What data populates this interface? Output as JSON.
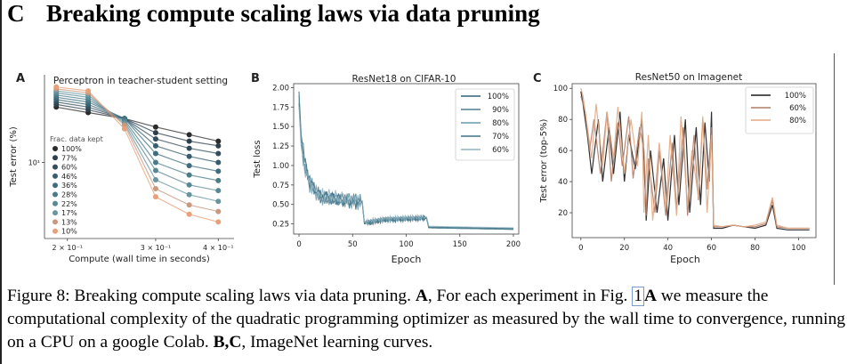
{
  "header": {
    "letter": "C",
    "title": "Breaking compute scaling laws via data pruning"
  },
  "figure": {
    "panel_a": {
      "label": "A",
      "title": "Perceptron in teacher-student setting",
      "xlabel": "Compute (wall time in seconds)",
      "ylabel": "Test error (%)",
      "xticks": [
        "2 × 10⁻¹",
        "3 × 10⁻¹",
        "4 × 10⁻¹"
      ],
      "yticks": [
        "10¹"
      ],
      "legend_title": "Frac. data kept",
      "legend": [
        "100%",
        "77%",
        "60%",
        "46%",
        "36%",
        "28%",
        "22%",
        "17%",
        "13%",
        "10%"
      ]
    },
    "panel_b": {
      "label": "B",
      "title": "ResNet18 on CIFAR-10",
      "xlabel": "Epoch",
      "ylabel": "Test loss",
      "xticks": [
        "0",
        "50",
        "100",
        "150",
        "200"
      ],
      "yticks": [
        "0.25",
        "0.50",
        "0.75",
        "1.00",
        "1.25",
        "1.50",
        "1.75",
        "2.00"
      ],
      "legend": [
        "100%",
        "90%",
        "80%",
        "70%",
        "60%"
      ]
    },
    "panel_c": {
      "label": "C",
      "title": "ResNet50 on Imagenet",
      "xlabel": "Epoch",
      "ylabel": "Test error (top-5%)",
      "xticks": [
        "0",
        "20",
        "40",
        "60",
        "80",
        "100"
      ],
      "yticks": [
        "20",
        "40",
        "60",
        "80",
        "100"
      ],
      "legend": [
        "100%",
        "60%",
        "80%"
      ]
    }
  },
  "colors": {
    "a_series": [
      "#2b2b2b",
      "#2e3f4c",
      "#324e5e",
      "#375e6e",
      "#3e6d7d",
      "#4a7b89",
      "#588995",
      "#6796a0",
      "#c9987e",
      "#e8a07a"
    ],
    "b_series": [
      "#2f5f78",
      "#4e7f94",
      "#6a9aa9",
      "#3f7286",
      "#8fb3bf"
    ],
    "c_series": [
      "#1a1a1a",
      "#b07b67",
      "#e2a882"
    ]
  },
  "caption": {
    "part1_label": "Figure 8:",
    "part1_text": " Breaking compute scaling laws via data pruning. ",
    "a_label": "A",
    "a_text": ", For each experiment in Fig. ",
    "ref_num": "1",
    "ref_letter": "A",
    "a_text2": " we measure the computational complexity of the quadratic programming optimizer as measured by the wall time to convergence, running on a CPU on a google Colab. ",
    "bc_label": "B,C",
    "bc_text": ", ImageNet learning curves."
  },
  "chart_data": [
    {
      "type": "scatter",
      "title": "Perceptron in teacher-student setting",
      "xlabel": "Compute (wall time in seconds)",
      "ylabel": "Test error (%)",
      "xscale": "log",
      "yscale": "log",
      "xlim": [
        0.18,
        0.43
      ],
      "ylim": [
        3,
        40
      ],
      "legend_placement": "left",
      "series": [
        {
          "name": "100%",
          "x": [
            0.19,
            0.22,
            0.26,
            0.3,
            0.35,
            0.4
          ],
          "y": [
            24,
            22,
            20,
            17.5,
            15.5,
            14
          ]
        },
        {
          "name": "77%",
          "x": [
            0.19,
            0.22,
            0.26,
            0.3,
            0.35,
            0.4
          ],
          "y": [
            25,
            23,
            20,
            16,
            14,
            13
          ]
        },
        {
          "name": "60%",
          "x": [
            0.19,
            0.22,
            0.26,
            0.3,
            0.35,
            0.4
          ],
          "y": [
            26,
            24,
            20,
            14.5,
            12.5,
            11.5
          ]
        },
        {
          "name": "46%",
          "x": [
            0.19,
            0.22,
            0.26,
            0.3,
            0.35,
            0.4
          ],
          "y": [
            27,
            25,
            20,
            13,
            11,
            10
          ]
        },
        {
          "name": "36%",
          "x": [
            0.19,
            0.22,
            0.26,
            0.3,
            0.35,
            0.4
          ],
          "y": [
            28,
            26,
            20,
            11.5,
            9.5,
            8.7
          ]
        },
        {
          "name": "28%",
          "x": [
            0.19,
            0.22,
            0.26,
            0.3,
            0.35,
            0.4
          ],
          "y": [
            29,
            27,
            19.5,
            10,
            8.2,
            7.5
          ]
        },
        {
          "name": "22%",
          "x": [
            0.19,
            0.22,
            0.26,
            0.3,
            0.35,
            0.4
          ],
          "y": [
            30,
            28,
            19,
            8.8,
            7,
            6.4
          ]
        },
        {
          "name": "17%",
          "x": [
            0.19,
            0.22,
            0.26,
            0.3,
            0.35,
            0.4
          ],
          "y": [
            31,
            29,
            18.5,
            7.6,
            6,
            5.4
          ]
        },
        {
          "name": "13%",
          "x": [
            0.19,
            0.22,
            0.26,
            0.3,
            0.35,
            0.4
          ],
          "y": [
            32,
            30,
            18,
            6.6,
            5.1,
            4.6
          ]
        },
        {
          "name": "10%",
          "x": [
            0.19,
            0.22,
            0.26,
            0.3,
            0.35,
            0.4
          ],
          "y": [
            33,
            31,
            17,
            5.8,
            4.4,
            3.9
          ]
        }
      ]
    },
    {
      "type": "line",
      "title": "ResNet18 on CIFAR-10",
      "xlabel": "Epoch",
      "ylabel": "Test loss",
      "xlim": [
        -5,
        205
      ],
      "ylim": [
        0.12,
        2.05
      ],
      "legend_placement": "top-right",
      "series": [
        {
          "name": "100%",
          "x": [
            0,
            2,
            5,
            10,
            20,
            40,
            59,
            61,
            80,
            119,
            121,
            200
          ],
          "y": [
            1.95,
            1.4,
            1.1,
            0.8,
            0.6,
            0.55,
            0.52,
            0.25,
            0.3,
            0.32,
            0.2,
            0.18
          ]
        },
        {
          "name": "90%",
          "x": [
            0,
            2,
            5,
            10,
            20,
            40,
            59,
            61,
            80,
            119,
            121,
            200
          ],
          "y": [
            1.9,
            1.35,
            1.05,
            0.78,
            0.6,
            0.56,
            0.53,
            0.26,
            0.3,
            0.32,
            0.2,
            0.18
          ]
        },
        {
          "name": "80%",
          "x": [
            0,
            2,
            5,
            10,
            20,
            40,
            59,
            61,
            80,
            119,
            121,
            200
          ],
          "y": [
            1.85,
            1.3,
            1.0,
            0.75,
            0.58,
            0.55,
            0.52,
            0.26,
            0.31,
            0.33,
            0.21,
            0.19
          ]
        },
        {
          "name": "70%",
          "x": [
            0,
            2,
            5,
            10,
            20,
            40,
            59,
            61,
            80,
            119,
            121,
            200
          ],
          "y": [
            1.8,
            1.3,
            1.0,
            0.75,
            0.6,
            0.57,
            0.54,
            0.27,
            0.31,
            0.33,
            0.21,
            0.19
          ]
        },
        {
          "name": "60%",
          "x": [
            0,
            2,
            5,
            10,
            20,
            40,
            59,
            61,
            80,
            119,
            121,
            200
          ],
          "y": [
            1.75,
            1.25,
            0.98,
            0.75,
            0.62,
            0.58,
            0.55,
            0.28,
            0.32,
            0.34,
            0.22,
            0.2
          ]
        }
      ]
    },
    {
      "type": "line",
      "title": "ResNet50 on Imagenet",
      "xlabel": "Epoch",
      "ylabel": "Test error (top-5%)",
      "xlim": [
        -4,
        108
      ],
      "ylim": [
        4,
        103
      ],
      "legend_placement": "top-right",
      "series": [
        {
          "name": "100%",
          "x": [
            0,
            1,
            3,
            5,
            8,
            10,
            13,
            15,
            18,
            20,
            22,
            25,
            28,
            29,
            30,
            32,
            35,
            38,
            40,
            43,
            45,
            48,
            50,
            53,
            55,
            57,
            59,
            60,
            61,
            65,
            70,
            75,
            80,
            85,
            88,
            90,
            95,
            100,
            105
          ],
          "y": [
            98,
            90,
            70,
            45,
            80,
            40,
            75,
            45,
            85,
            40,
            70,
            48,
            80,
            55,
            15,
            60,
            20,
            55,
            15,
            70,
            25,
            80,
            20,
            75,
            25,
            78,
            40,
            85,
            10,
            10,
            12,
            11,
            10,
            12,
            25,
            10,
            9,
            9,
            9
          ]
        },
        {
          "name": "60%",
          "x": [
            0,
            2,
            4,
            6,
            9,
            12,
            14,
            17,
            19,
            22,
            24,
            27,
            29,
            30,
            31,
            34,
            36,
            39,
            42,
            44,
            47,
            49,
            52,
            54,
            56,
            58,
            60,
            61,
            65,
            70,
            75,
            80,
            85,
            88,
            90,
            95,
            100,
            105
          ],
          "y": [
            95,
            85,
            60,
            80,
            45,
            85,
            40,
            78,
            50,
            82,
            42,
            75,
            60,
            18,
            55,
            20,
            60,
            18,
            65,
            22,
            75,
            18,
            70,
            28,
            80,
            35,
            75,
            11,
            11,
            12,
            11,
            11,
            13,
            28,
            11,
            10,
            10,
            10
          ]
        },
        {
          "name": "80%",
          "x": [
            0,
            1,
            3,
            5,
            7,
            10,
            12,
            15,
            17,
            20,
            23,
            26,
            28,
            29,
            31,
            33,
            36,
            39,
            41,
            44,
            46,
            49,
            51,
            54,
            56,
            58,
            60,
            61,
            65,
            70,
            75,
            80,
            85,
            88,
            90,
            95,
            100,
            105
          ],
          "y": [
            100,
            95,
            75,
            55,
            90,
            50,
            85,
            55,
            88,
            45,
            80,
            50,
            85,
            20,
            70,
            15,
            65,
            22,
            70,
            18,
            82,
            25,
            60,
            30,
            82,
            20,
            70,
            12,
            11,
            12,
            11,
            12,
            14,
            30,
            12,
            10,
            10,
            10
          ]
        }
      ]
    }
  ]
}
